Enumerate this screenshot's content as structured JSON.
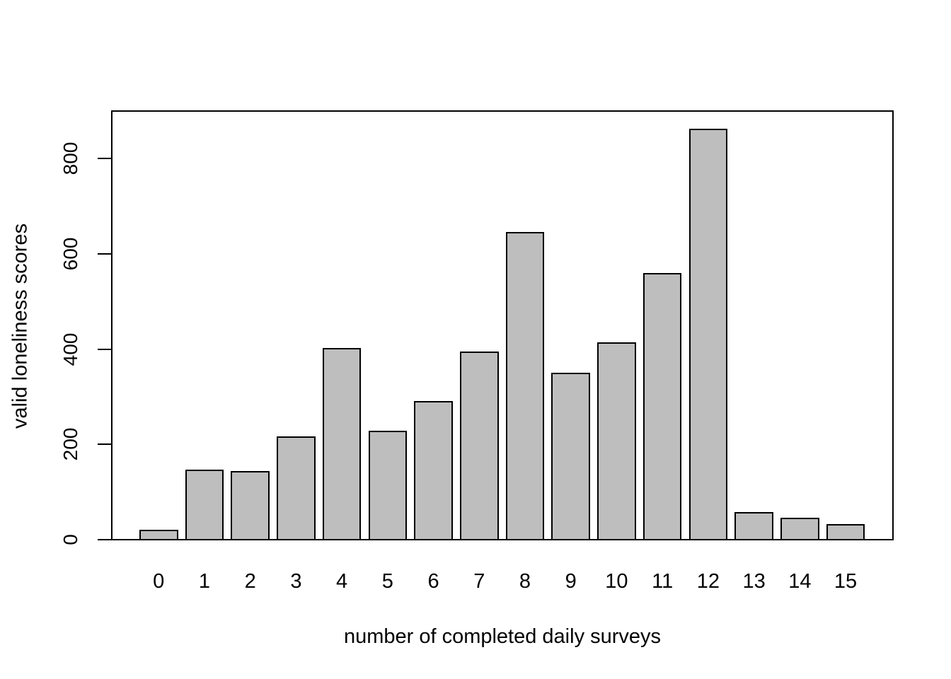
{
  "figure": {
    "background": "#FFFFFF"
  },
  "chart_data": {
    "type": "bar",
    "title": "",
    "xlabel": "number of completed daily surveys",
    "ylabel": "valid loneliness scores",
    "categories": [
      "0",
      "1",
      "2",
      "3",
      "4",
      "5",
      "6",
      "7",
      "8",
      "9",
      "10",
      "11",
      "12",
      "13",
      "14",
      "15"
    ],
    "values": [
      22,
      149,
      146,
      218,
      404,
      230,
      293,
      396,
      648,
      352,
      416,
      562,
      865,
      60,
      47,
      34
    ],
    "ylim": [
      0,
      900
    ],
    "yticks": [
      0,
      200,
      400,
      600,
      800
    ],
    "grid": false,
    "legend_position": "none",
    "bar_fill": "#BEBEBE",
    "bar_border": "#000000",
    "axis_color": "#000000",
    "text_color": "#000000"
  }
}
